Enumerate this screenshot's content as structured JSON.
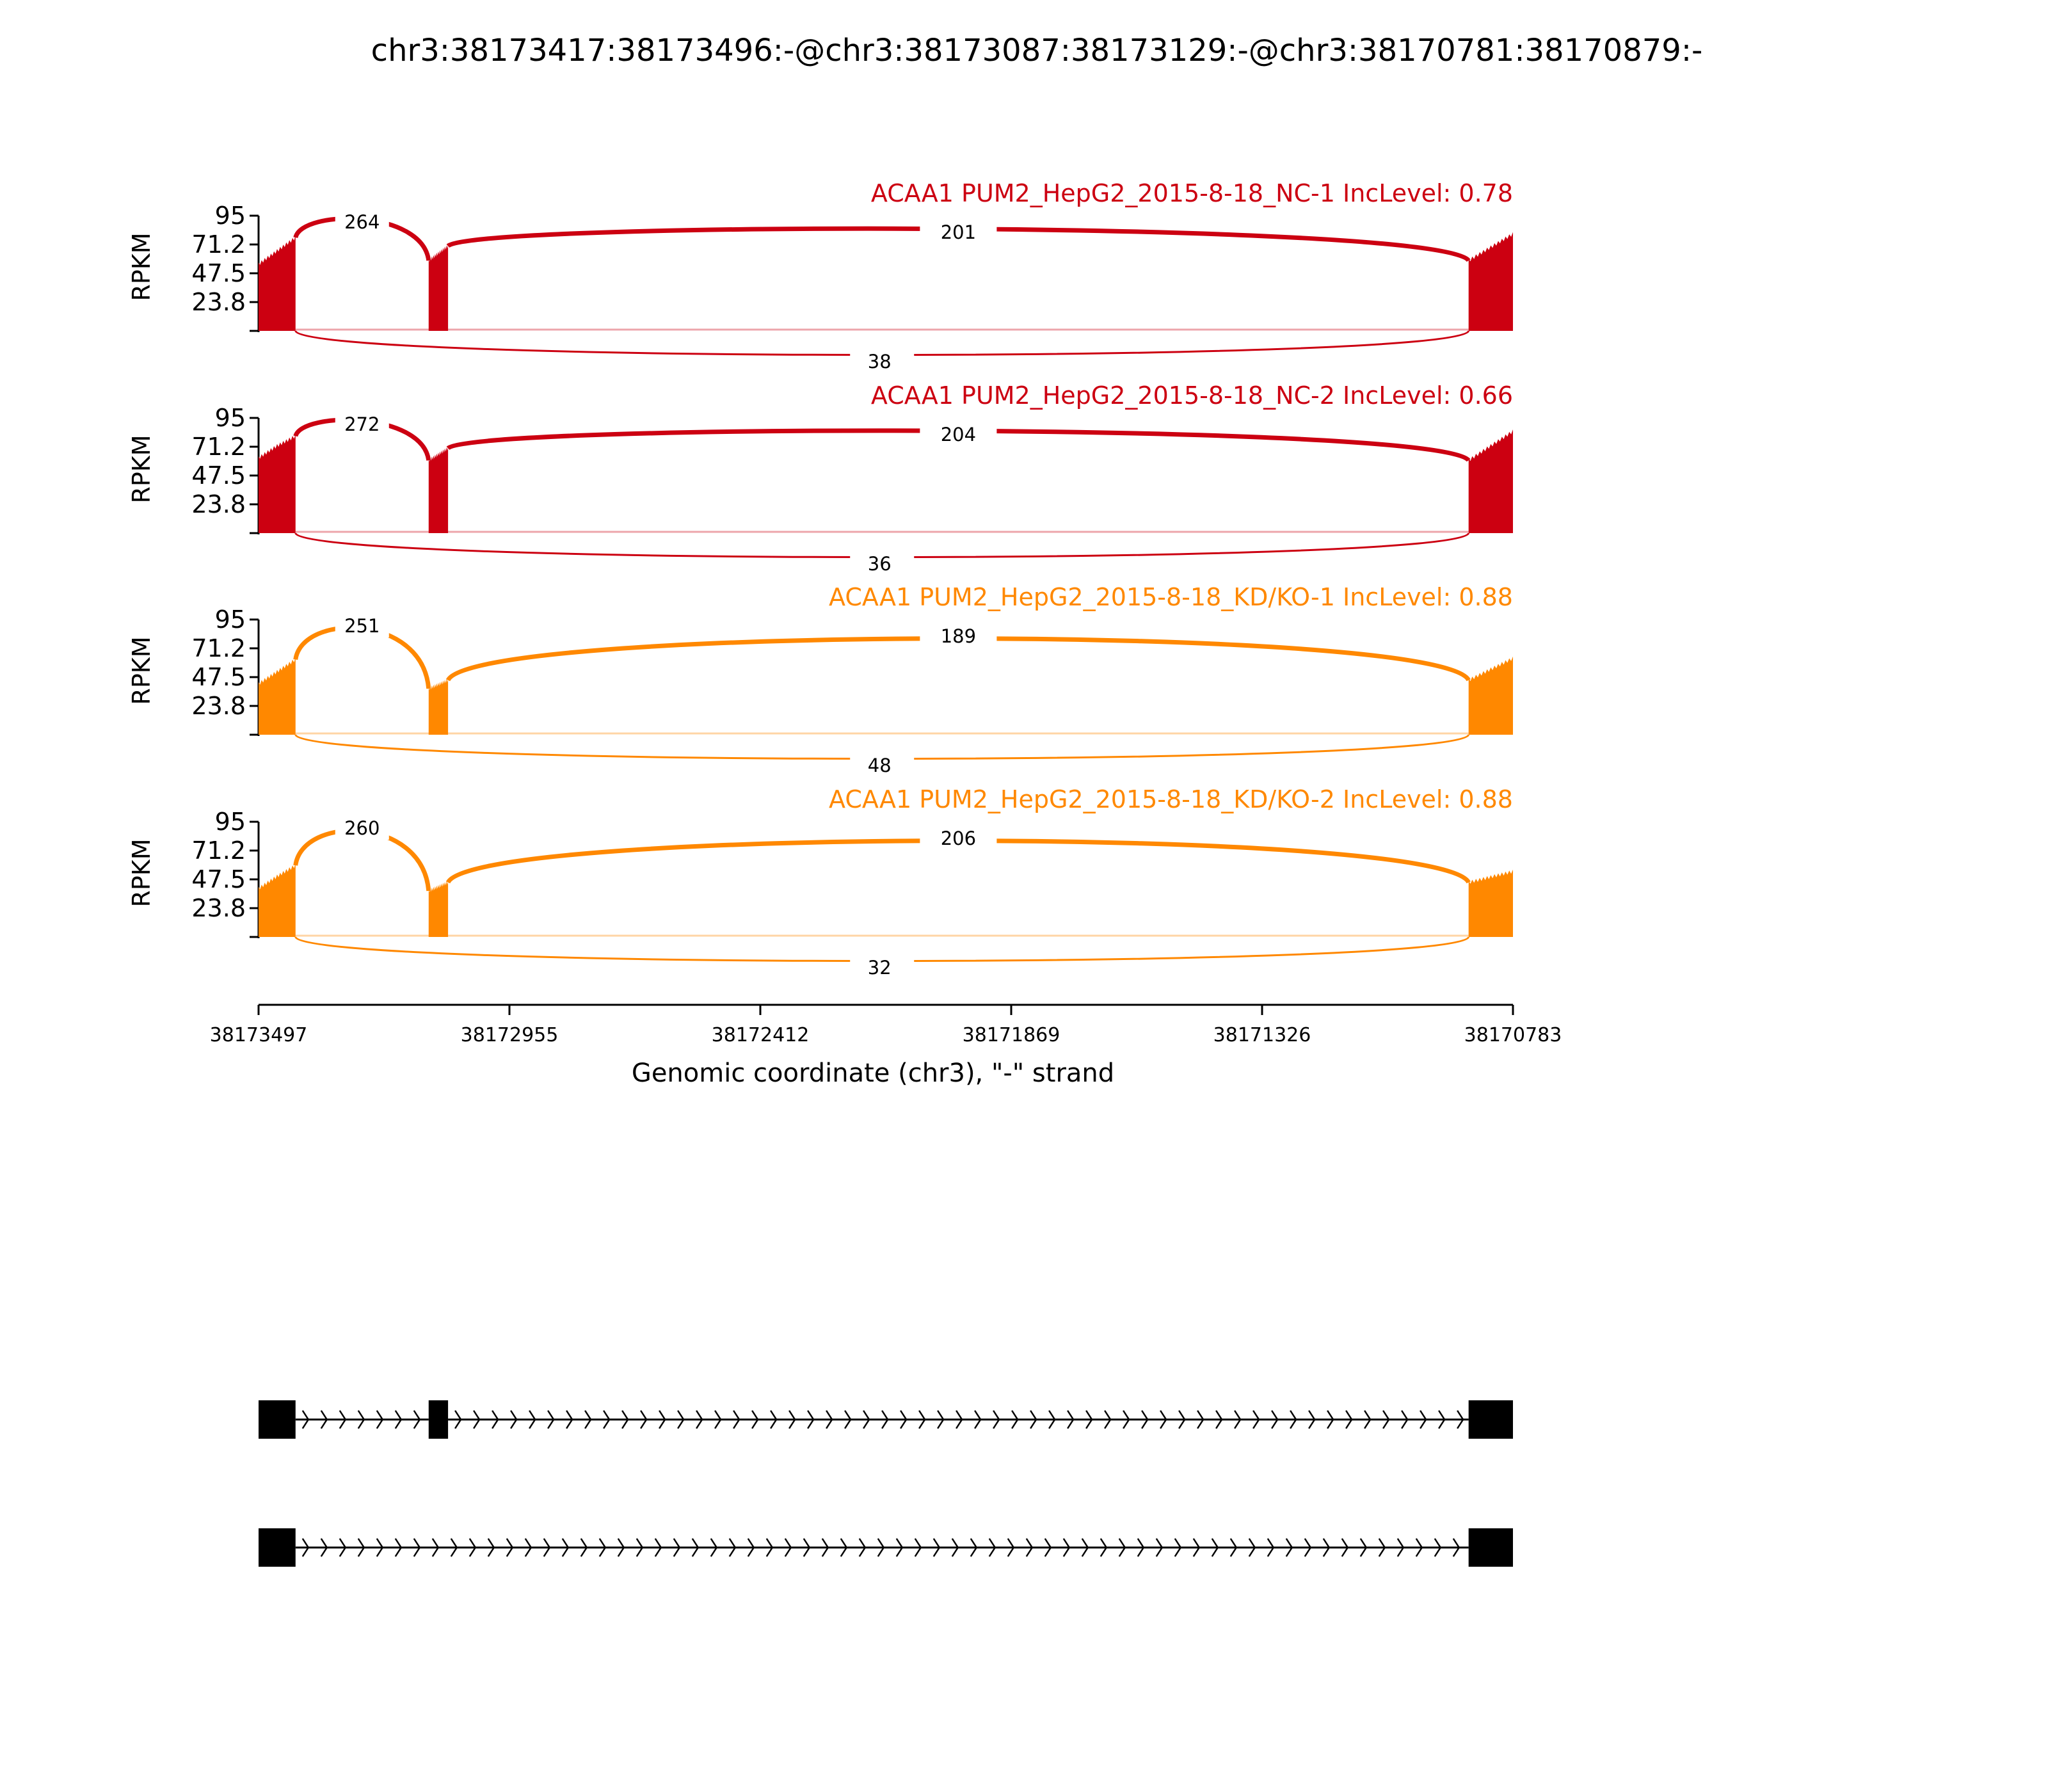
{
  "chart_title": "chr3:38173417:38173496:-@chr3:38173087:38173129:-@chr3:38170781:38170879:-",
  "chart_data": {
    "type": "sashimi",
    "title": "chr3:38173417:38173496:-@chr3:38173087:38173129:-@chr3:38170781:38170879:-",
    "ylabel": "RPKM",
    "yticks": [
      "95",
      "71.2",
      "47.5",
      "23.8"
    ],
    "ylim": [
      0,
      95
    ],
    "xlabel": "Genomic coordinate (chr3), \"-\" strand",
    "xticks": [
      "38173497",
      "38172955",
      "38172412",
      "38171869",
      "38171326",
      "38170783"
    ],
    "xlim": [
      38173497,
      38170783
    ],
    "exons": [
      {
        "start": 38173497,
        "end": 38173417
      },
      {
        "start": 38173129,
        "end": 38173087
      },
      {
        "start": 38170879,
        "end": 38170783
      }
    ],
    "tracks": [
      {
        "label": "ACAA1 PUM2_HepG2_2015-8-18_NC-1 IncLevel: 0.78",
        "color": "#cc0011",
        "exon_levels": [
          [
            55,
            66,
            77
          ],
          [
            58,
            70
          ],
          [
            58,
            80
          ]
        ],
        "junctions": {
          "exon1_exon2": "264",
          "exon2_exon3": "201",
          "skip": "38"
        }
      },
      {
        "label": "ACAA1 PUM2_HepG2_2015-8-18_NC-2 IncLevel: 0.66",
        "color": "#cc0011",
        "exon_levels": [
          [
            62,
            72,
            80
          ],
          [
            60,
            70
          ],
          [
            60,
            84
          ]
        ],
        "junctions": {
          "exon1_exon2": "272",
          "exon2_exon3": "204",
          "skip": "36"
        }
      },
      {
        "label": "ACAA1 PUM2_HepG2_2015-8-18_KD/KO-1 IncLevel: 0.88",
        "color": "#ff8800",
        "exon_levels": [
          [
            42,
            52,
            62
          ],
          [
            38,
            45
          ],
          [
            45,
            63
          ]
        ],
        "junctions": {
          "exon1_exon2": "251",
          "exon2_exon3": "189",
          "skip": "48"
        }
      },
      {
        "label": "ACAA1 PUM2_HepG2_2015-8-18_KD/KO-2 IncLevel: 0.88",
        "color": "#ff8800",
        "exon_levels": [
          [
            40,
            50,
            59
          ],
          [
            38,
            45
          ],
          [
            45,
            54
          ]
        ],
        "junctions": {
          "exon1_exon2": "260",
          "exon2_exon3": "206",
          "skip": "32"
        }
      }
    ],
    "isoforms": [
      {
        "exons": [
          0,
          1,
          2
        ]
      },
      {
        "exons": [
          0,
          2
        ]
      }
    ]
  }
}
